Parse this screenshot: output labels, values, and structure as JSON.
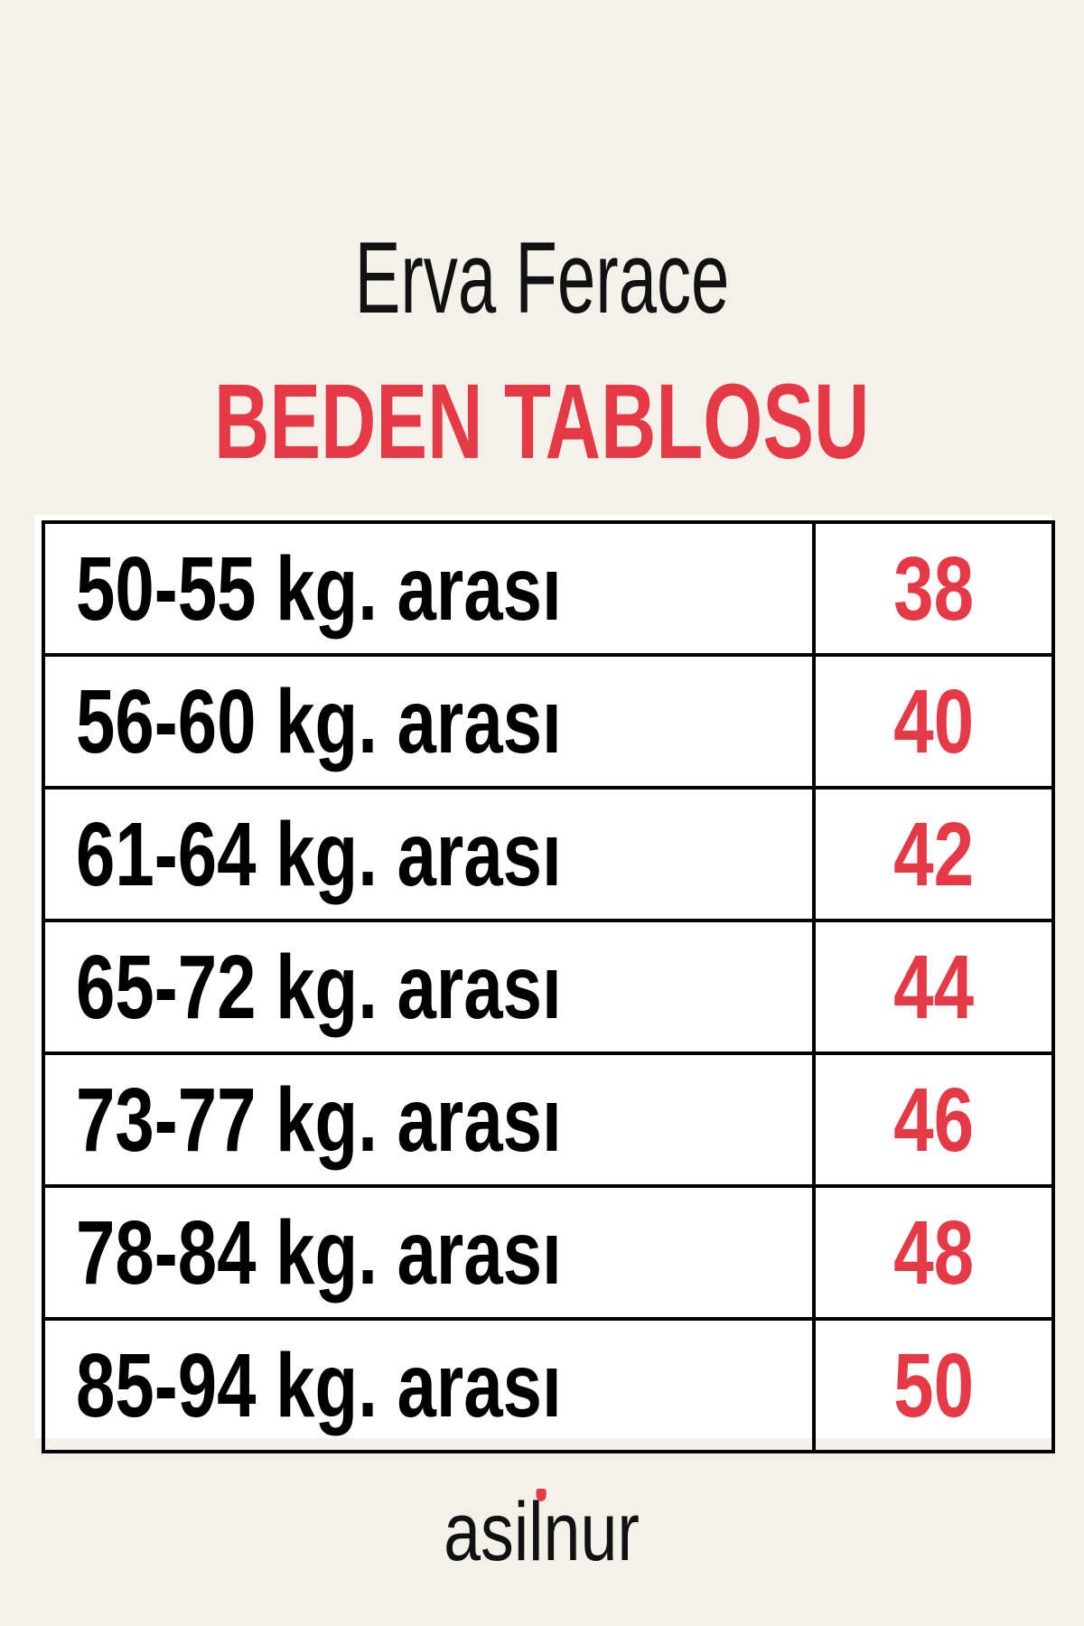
{
  "header": {
    "title": "Erva Ferace",
    "subtitle": "BEDEN TABLOSU"
  },
  "table": {
    "rows": [
      {
        "range": "50-55 kg. arası",
        "size": "38"
      },
      {
        "range": "56-60 kg. arası",
        "size": "40"
      },
      {
        "range": "61-64 kg. arası",
        "size": "42"
      },
      {
        "range": "65-72 kg. arası",
        "size": "44"
      },
      {
        "range": "73-77 kg. arası",
        "size": "46"
      },
      {
        "range": "78-84 kg. arası",
        "size": "48"
      },
      {
        "range": "85-94 kg. arası",
        "size": "50"
      }
    ]
  },
  "brand": {
    "logo_text": "asilnur"
  },
  "colors": {
    "accent": "#e63946",
    "background": "#f4f1eb",
    "text": "#000000"
  }
}
